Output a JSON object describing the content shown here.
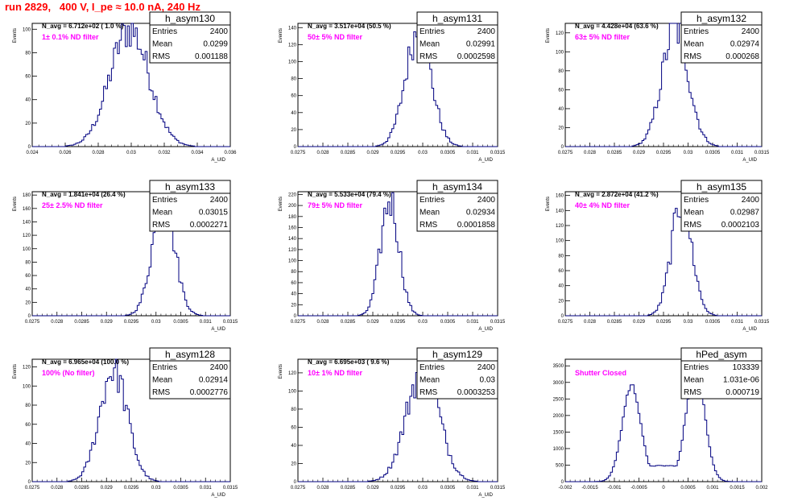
{
  "canvas_title": "run 2829,   400 V, I_pe ≈ 10.0 nA, 240 Hz",
  "labels": {
    "entries": "Entries",
    "mean": "Mean",
    "rms": "RMS"
  },
  "chart_data": [
    {
      "type": "bar",
      "name": "h_asym130",
      "navg": "N_avg = 6.712e+02 ( 1.0 %)",
      "filter": "1± 0.1% ND filter",
      "entries": "2400",
      "mean": "0.0299",
      "rms": "0.001188",
      "xlabel": "A_UID",
      "ylabel": "Events",
      "xlim": [
        0.024,
        0.036
      ],
      "ylim": [
        0,
        105
      ],
      "xticks": [
        "0.024",
        "0.026",
        "0.028",
        "0.03",
        "0.032",
        "0.034",
        "0.036"
      ],
      "yticks": [
        0,
        20,
        40,
        60,
        80,
        100
      ],
      "mu": 0.0299,
      "sigma": 0.001188,
      "peak": 100
    },
    {
      "type": "bar",
      "name": "h_asym131",
      "navg": "N_avg = 3.517e+04 (50.5 %)",
      "filter": "50± 5% ND filter",
      "entries": "2400",
      "mean": "0.02991",
      "rms": "0.0002598",
      "xlabel": "A_UID",
      "ylabel": "Events",
      "xlim": [
        0.0275,
        0.0315
      ],
      "ylim": [
        0,
        145
      ],
      "xticks": [
        "0.0275",
        "0.028",
        "0.0285",
        "0.029",
        "0.0295",
        "0.03",
        "0.0305",
        "0.031",
        "0.0315"
      ],
      "yticks": [
        0,
        20,
        40,
        60,
        80,
        100,
        120,
        140
      ],
      "mu": 0.02991,
      "sigma": 0.0002598,
      "peak": 135
    },
    {
      "type": "bar",
      "name": "h_asym132",
      "navg": "N_avg = 4.428e+04 (63.6 %)",
      "filter": "63± 5% ND filter",
      "entries": "2400",
      "mean": "0.02974",
      "rms": "0.000268",
      "xlabel": "A_UID",
      "ylabel": "Events",
      "xlim": [
        0.0275,
        0.0315
      ],
      "ylim": [
        0,
        130
      ],
      "xticks": [
        "0.0275",
        "0.028",
        "0.0285",
        "0.029",
        "0.0295",
        "0.03",
        "0.0305",
        "0.031",
        "0.0315"
      ],
      "yticks": [
        0,
        20,
        40,
        60,
        80,
        100,
        120
      ],
      "mu": 0.02974,
      "sigma": 0.000268,
      "peak": 125
    },
    {
      "type": "bar",
      "name": "h_asym133",
      "navg": "N_avg = 1.841e+04 (26.4 %)",
      "filter": "25± 2.5% ND filter",
      "entries": "2400",
      "mean": "0.03015",
      "rms": "0.0002271",
      "xlabel": "A_UID",
      "ylabel": "Events",
      "xlim": [
        0.0275,
        0.0315
      ],
      "ylim": [
        0,
        185
      ],
      "xticks": [
        "0.0275",
        "0.028",
        "0.0285",
        "0.029",
        "0.0295",
        "0.03",
        "0.0305",
        "0.031",
        "0.0315"
      ],
      "yticks": [
        0,
        20,
        40,
        60,
        80,
        100,
        120,
        140,
        160,
        180
      ],
      "mu": 0.03015,
      "sigma": 0.0002271,
      "peak": 172
    },
    {
      "type": "bar",
      "name": "h_asym134",
      "navg": "N_avg = 5.533e+04 (79.4 %)",
      "filter": "79± 5% ND filter",
      "entries": "2400",
      "mean": "0.02934",
      "rms": "0.0001858",
      "xlabel": "A_UID",
      "ylabel": "Events",
      "xlim": [
        0.0275,
        0.0315
      ],
      "ylim": [
        0,
        225
      ],
      "xticks": [
        "0.0275",
        "0.028",
        "0.0285",
        "0.029",
        "0.0295",
        "0.03",
        "0.0305",
        "0.031",
        "0.0315"
      ],
      "yticks": [
        0,
        20,
        40,
        60,
        80,
        100,
        120,
        140,
        160,
        180,
        200,
        220
      ],
      "mu": 0.02934,
      "sigma": 0.0001858,
      "peak": 210
    },
    {
      "type": "bar",
      "name": "h_asym135",
      "navg": "N_avg = 2.872e+04 (41.2 %)",
      "filter": "40± 4% ND filter",
      "entries": "2400",
      "mean": "0.02987",
      "rms": "0.0002103",
      "xlabel": "A_UID",
      "ylabel": "Events",
      "xlim": [
        0.0275,
        0.0315
      ],
      "ylim": [
        0,
        165
      ],
      "xticks": [
        "0.0275",
        "0.028",
        "0.0285",
        "0.029",
        "0.0295",
        "0.03",
        "0.0305",
        "0.031",
        "0.0315"
      ],
      "yticks": [
        0,
        20,
        40,
        60,
        80,
        100,
        120,
        140,
        160
      ],
      "mu": 0.02987,
      "sigma": 0.0002103,
      "peak": 150
    },
    {
      "type": "bar",
      "name": "h_asym128",
      "navg": "N_avg = 6.965e+04 (100.0 %)",
      "filter": "100% (No filter)",
      "entries": "2400",
      "mean": "0.02914",
      "rms": "0.0002776",
      "xlabel": "A_UID",
      "ylabel": "Events",
      "xlim": [
        0.0275,
        0.0315
      ],
      "ylim": [
        0,
        128
      ],
      "xticks": [
        "0.0275",
        "0.028",
        "0.0285",
        "0.029",
        "0.0295",
        "0.03",
        "0.0305",
        "0.031",
        "0.0315"
      ],
      "yticks": [
        0,
        20,
        40,
        60,
        80,
        100,
        120
      ],
      "mu": 0.02914,
      "sigma": 0.0002776,
      "peak": 118
    },
    {
      "type": "bar",
      "name": "h_asym129",
      "navg": "N_avg = 6.695e+03 ( 9.6 %)",
      "filter": "10± 1% ND filter",
      "entries": "2400",
      "mean": "0.03",
      "rms": "0.0003253",
      "xlabel": "A_UID",
      "ylabel": "Events",
      "xlim": [
        0.0275,
        0.0315
      ],
      "ylim": [
        0,
        135
      ],
      "xticks": [
        "0.0275",
        "0.028",
        "0.0285",
        "0.029",
        "0.0295",
        "0.03",
        "0.0305",
        "0.031",
        "0.0315"
      ],
      "yticks": [
        0,
        20,
        40,
        60,
        80,
        100,
        120
      ],
      "mu": 0.03,
      "sigma": 0.0003253,
      "peak": 125
    },
    {
      "type": "bar",
      "name": "hPed_asym",
      "navg": "",
      "filter": "Shutter Closed",
      "entries": "103339",
      "mean": "1.031e-06",
      "rms": "0.000719",
      "xlabel": "",
      "ylabel": "",
      "xlim": [
        -0.002,
        0.002
      ],
      "ylim": [
        0,
        3700
      ],
      "xticks": [
        "-0.002",
        "-0.0015",
        "-0.001",
        "-0.0005",
        "0",
        "0.0005",
        "0.001",
        "0.0015",
        "0.002"
      ],
      "yticks": [
        0,
        500,
        1000,
        1500,
        2000,
        2500,
        3000,
        3500
      ],
      "peaks": [
        {
          "mu": -0.00065,
          "sigma": 0.00019,
          "height": 2900
        },
        {
          "mu": 0.00065,
          "sigma": 0.00019,
          "height": 3450
        }
      ],
      "floor": 480
    }
  ]
}
